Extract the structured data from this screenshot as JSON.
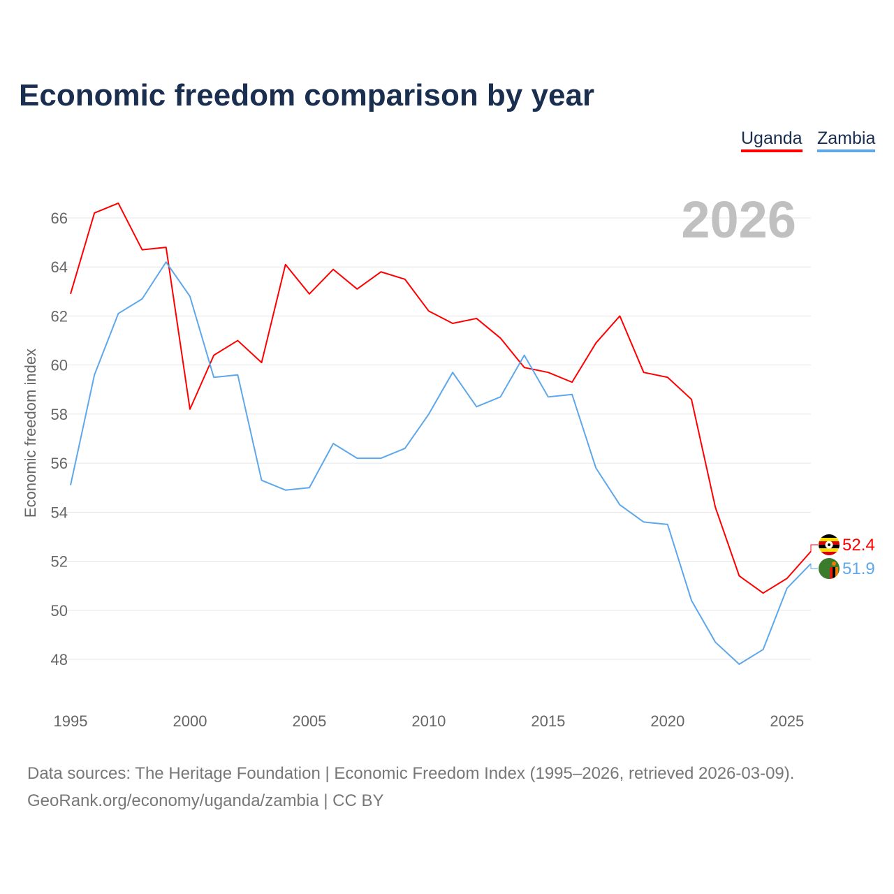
{
  "title": "Economic freedom comparison by year",
  "legend": [
    "Uganda",
    "Zambia"
  ],
  "year_watermark": "2026",
  "footer": {
    "line1": "Data sources: The Heritage Foundation | Economic Freedom Index (1995–2026, retrieved 2026-03-09).",
    "line2": "GeoRank.org/economy/uganda/zambia | CC BY"
  },
  "chart_data": {
    "type": "line",
    "title": "Economic freedom comparison by year",
    "xlabel": "",
    "ylabel": "Economic freedom index",
    "xlim": [
      1995,
      2026
    ],
    "ylim": [
      48,
      66
    ],
    "xticks": [
      1995,
      2000,
      2005,
      2010,
      2015,
      2020,
      2025
    ],
    "yticks": [
      48,
      50,
      52,
      54,
      56,
      58,
      60,
      62,
      64,
      66
    ],
    "grid": true,
    "legend_position": "top-right",
    "x": [
      1995,
      1996,
      1997,
      1998,
      1999,
      2000,
      2001,
      2002,
      2003,
      2004,
      2005,
      2006,
      2007,
      2008,
      2009,
      2010,
      2011,
      2012,
      2013,
      2014,
      2015,
      2016,
      2017,
      2018,
      2019,
      2020,
      2021,
      2022,
      2023,
      2024,
      2025,
      2026
    ],
    "series": [
      {
        "name": "Uganda",
        "color": "#ff0000",
        "end_label": "52.4",
        "values": [
          62.9,
          66.2,
          66.6,
          64.7,
          64.8,
          58.2,
          60.4,
          61.0,
          60.1,
          64.1,
          62.9,
          63.9,
          63.1,
          63.8,
          63.5,
          62.2,
          61.7,
          61.9,
          61.1,
          59.9,
          59.7,
          59.3,
          60.9,
          62.0,
          59.7,
          59.5,
          58.6,
          54.2,
          51.4,
          50.7,
          51.3,
          52.4
        ]
      },
      {
        "name": "Zambia",
        "color": "#5da7ea",
        "end_label": "51.9",
        "values": [
          55.1,
          59.6,
          62.1,
          62.7,
          64.2,
          62.8,
          59.5,
          59.6,
          55.3,
          54.9,
          55.0,
          56.8,
          56.2,
          56.2,
          56.6,
          58.0,
          59.7,
          58.3,
          58.7,
          60.4,
          58.7,
          58.8,
          55.8,
          54.3,
          53.6,
          53.5,
          50.4,
          48.7,
          47.8,
          48.4,
          50.9,
          51.9
        ]
      }
    ]
  }
}
